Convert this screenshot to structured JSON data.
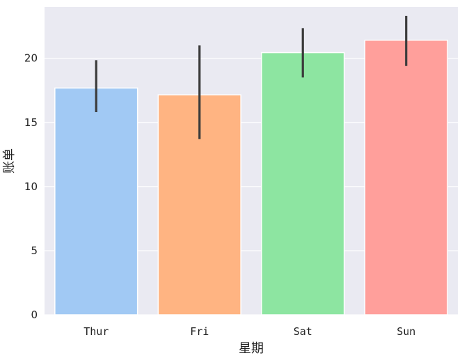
{
  "chart_data": {
    "type": "bar",
    "title": "",
    "xlabel": "星期",
    "ylabel": "账单",
    "categories": [
      "Thur",
      "Fri",
      "Sat",
      "Sun"
    ],
    "values": [
      17.68,
      17.15,
      20.44,
      21.41
    ],
    "error_low": [
      15.8,
      13.7,
      18.5,
      19.4
    ],
    "error_high": [
      19.85,
      21.0,
      22.35,
      23.3
    ],
    "ylim": [
      0,
      24.0
    ],
    "yticks": [
      0,
      5,
      10,
      15,
      20
    ],
    "grid": true,
    "colors": [
      "#a1c9f4",
      "#ffb482",
      "#8de5a1",
      "#ff9f9b"
    ],
    "plot_background": "#eaeaf2",
    "error_bar_color": "#3b3b3b"
  }
}
